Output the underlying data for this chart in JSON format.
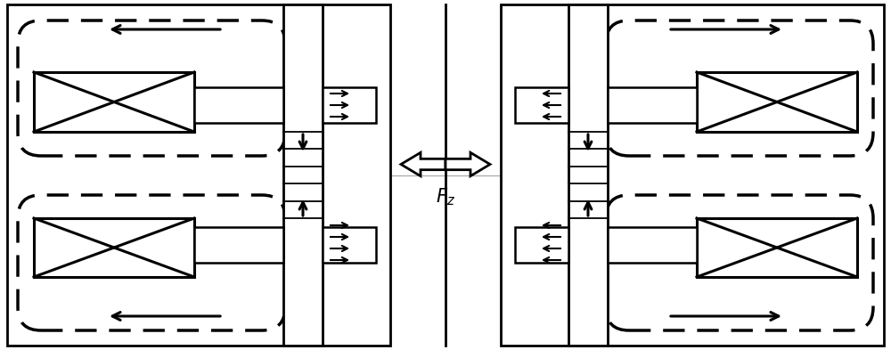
{
  "fig_width": 10.0,
  "fig_height": 3.93,
  "bg_color": "#ffffff",
  "lc": "#000000",
  "Fz_label": "$F_z$",
  "gray": "#aaaaaa"
}
